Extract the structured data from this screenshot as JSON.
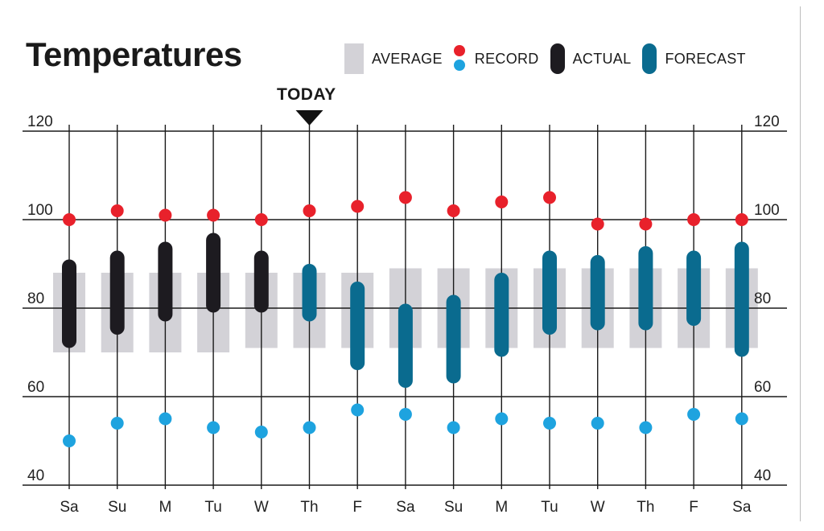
{
  "title": "Temperatures",
  "legend": {
    "average": "AVERAGE",
    "record": "RECORD",
    "actual": "ACTUAL",
    "forecast": "FORECAST"
  },
  "today_label": "TODAY",
  "colors": {
    "average": "#d3d2d7",
    "record_high": "#e8212b",
    "record_low": "#1ea3df",
    "actual": "#1d1b20",
    "forecast": "#0a6b8f",
    "gridline": "#1a1a1a"
  },
  "chart_data": {
    "type": "range-bar",
    "title": "Temperatures",
    "ylim": [
      40,
      120
    ],
    "yticks": [
      40,
      60,
      80,
      100,
      120
    ],
    "ytick_labels": [
      "40",
      "60",
      "80",
      "100",
      "120"
    ],
    "grid": true,
    "today_index": 5,
    "categories": [
      "Sa",
      "Su",
      "M",
      "Tu",
      "W",
      "Th",
      "F",
      "Sa",
      "Su",
      "M",
      "Tu",
      "W",
      "Th",
      "F",
      "Sa"
    ],
    "average": [
      [
        70,
        88
      ],
      [
        70,
        88
      ],
      [
        70,
        88
      ],
      [
        70,
        88
      ],
      [
        71,
        88
      ],
      [
        71,
        88
      ],
      [
        71,
        88
      ],
      [
        71,
        89
      ],
      [
        71,
        89
      ],
      [
        71,
        89
      ],
      [
        71,
        89
      ],
      [
        71,
        89
      ],
      [
        71,
        89
      ],
      [
        71,
        89
      ],
      [
        71,
        89
      ]
    ],
    "record_high": [
      100,
      102,
      101,
      101,
      100,
      102,
      103,
      105,
      102,
      104,
      105,
      99,
      99,
      100,
      100
    ],
    "record_low": [
      50,
      54,
      55,
      53,
      52,
      53,
      57,
      56,
      53,
      55,
      54,
      54,
      53,
      56,
      55
    ],
    "actual": [
      [
        71,
        91
      ],
      [
        74,
        93
      ],
      [
        77,
        95
      ],
      [
        79,
        97
      ],
      [
        79,
        93
      ],
      null,
      null,
      null,
      null,
      null,
      null,
      null,
      null,
      null,
      null
    ],
    "forecast": [
      null,
      null,
      null,
      null,
      null,
      [
        77,
        90
      ],
      [
        66,
        86
      ],
      [
        62,
        81
      ],
      [
        63,
        83
      ],
      [
        69,
        88
      ],
      [
        74,
        93
      ],
      [
        75,
        92
      ],
      [
        75,
        94
      ],
      [
        76,
        93
      ],
      [
        69,
        95
      ]
    ]
  }
}
